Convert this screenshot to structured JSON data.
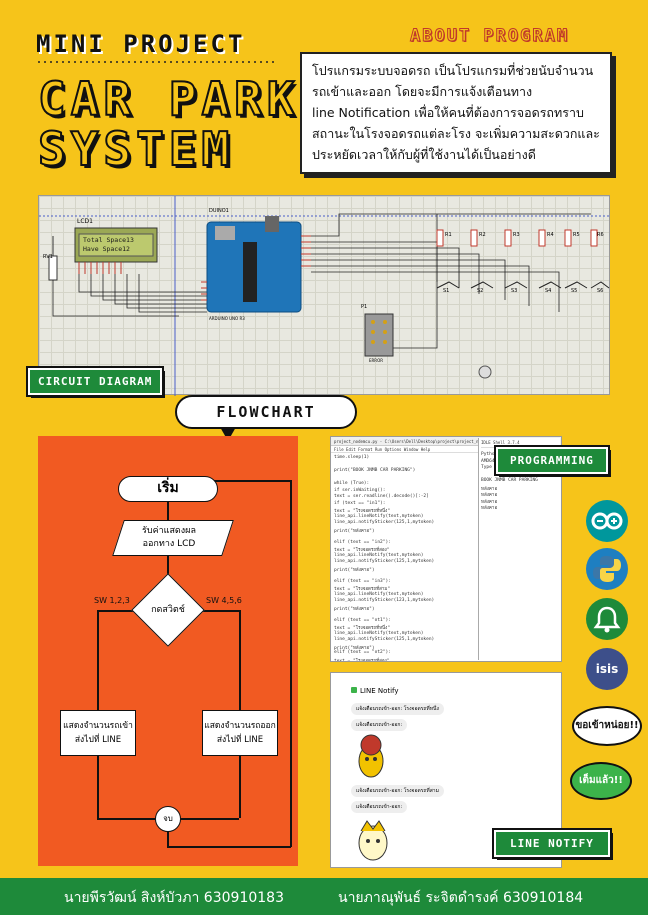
{
  "header": {
    "mini_title": "MINI PROJECT",
    "title_line1": "CAR PARK",
    "title_line2": "SYSTEM"
  },
  "about": {
    "title": "ABOUT PROGRAM",
    "lines": [
      "โปรแกรมระบบจอดรถ เป็นโปรแกรมที่ช่วยนับจำนวน",
      "รถเข้าและออก โดยจะมีการแจ้งเตือนทาง",
      "line Notification เพื่อให้คนที่ต้องการจอดรถทราบ",
      "สถานะในโรงจอดรถแต่ละโรง จะเพิ่มความสะดวกและ",
      "ประหยัดเวลาให้กับผู้ที่ใช้งานได้เป็นอย่างดี"
    ]
  },
  "circuit": {
    "label": "CIRCUIT DIAGRAM",
    "lcd_label": "LCD1",
    "lcd_line1": "Total Space13",
    "lcd_line2": "Have Space12",
    "board_label": "DUINO1",
    "board_caption": "ARDUINO UNO R3",
    "rv_label": "RV1",
    "p1_label": "P1",
    "p1_caption": "ERROR",
    "resistors": [
      "R1",
      "R2",
      "R3",
      "R4",
      "R5",
      "R6"
    ],
    "switches": [
      "S1",
      "S2",
      "S3",
      "S4",
      "S5",
      "S6"
    ]
  },
  "flowchart": {
    "title": "FLOWCHART",
    "start": "เริ่ม",
    "io_line1": "รับค่าแสดงผล",
    "io_line2": "ออกทาง LCD",
    "decision": "กดสวิตช์",
    "left_label": "SW 1,2,3",
    "right_label": "SW 4,5,6",
    "left_process_line1": "แสดงจำนวนรถเข้า",
    "left_process_line2": "ส่งไปที่ LINE",
    "right_process_line1": "แสดงจำนวนรถออก",
    "right_process_line2": "ส่งไปที่ LINE",
    "end": "จบ"
  },
  "programming": {
    "label": "PROGRAMMING",
    "window_title": "project_nodemcu.py - C:\\Users\\Dell\\Desktop\\project\\project_nodemcu.py (3.7.4)",
    "shell_title": "IDLE Shell 3.7.4",
    "menu": "File  Edit  Format  Run  Options  Window  Help",
    "code": [
      "time.sleep(1)",
      "",
      "print(\"BOOK JNMB CAR PARKING\")",
      "",
      "while (True):",
      "    if ser.inWaiting():",
      "        text = ser.readline().decode()[:-2]",
      "        if (text == \"in1\"):",
      "            text = \"โรงจอดรถที่หนึ่ง\"",
      "            line_api.lineNotify(text,mytoken)",
      "            line_api.notifySticker(125,1,mytoken)",
      "            print(\"หลังคาอ\")",
      "",
      "        elif (text == \"in2\"):",
      "            text = \"โรงจอดรถที่สอง\"",
      "            line_api.lineNotify(text,mytoken)",
      "            line_api.notifySticker(125,1,mytoken)",
      "            print(\"หลังคาอ\")",
      "",
      "        elif (text == \"in3\"):",
      "            text = \"โรงจอดรถที่สาม\"",
      "            line_api.lineNotify(text,mytoken)",
      "            line_api.notifySticker(123,1,mytoken)",
      "            print(\"หลังคาอ\")",
      "",
      "        elif (text == \"ot1\"):",
      "            text = \"โรงจอดรถที่หนึ่ง\"",
      "            line_api.lineNotify(text,mytoken)",
      "            line_api.notifySticker(125,1,mytoken)",
      "            print(\"หลังคาอ\")",
      "        elif (text == \"ot2\"):",
      "            text = \"โรงจอดรถที่สอง\"",
      "            line_api.lineNotify(text,mytoken)",
      "            line_api.notifySticker(123,1,mytoken)",
      "            print(\"หลังคาอ\")",
      "",
      "        elif (text == \"ot3\"):",
      "            text = \"โรงจอดรถที่สาม\""
    ],
    "shell": [
      "Python 3.7.4",
      "AMD64)] on win32",
      "Type \"help\",",
      "",
      "BOOK JNMB CAR PARKING",
      "หลังคาอ",
      "หลังคาอ",
      "หลังคาอ",
      "หลังคาอ"
    ]
  },
  "icons": [
    "arduino-icon",
    "python-icon",
    "bell-icon",
    "isis-icon"
  ],
  "isis_text": "isis",
  "line_notify": {
    "label": "LINE NOTIFY",
    "header": "LINE Notify",
    "messages": [
      "แจ้งเตือนรถเข้า-ออก: โรงจอดรถที่หนึ่ง",
      "แจ้งเตือนรถเข้า-ออก:",
      "แจ้งเตือนรถเข้า-ออก: โรงจอดรถที่สาม",
      "แจ้งเตือนรถเข้า-ออก:"
    ]
  },
  "bubbles": {
    "request": "ขอเข้าหน่อย!!",
    "full": "เต็มแล้ว!!"
  },
  "footer": {
    "author1": "นายพีรวัฒน์ สิงห์บัวภา 630910183",
    "author2": "นายภาณุพันธ์ ระจิตดำรงค์ 630910184"
  },
  "colors": {
    "background": "#f6c41a",
    "accent_green": "#1e8a3a",
    "flow_orange": "#f15a22"
  }
}
